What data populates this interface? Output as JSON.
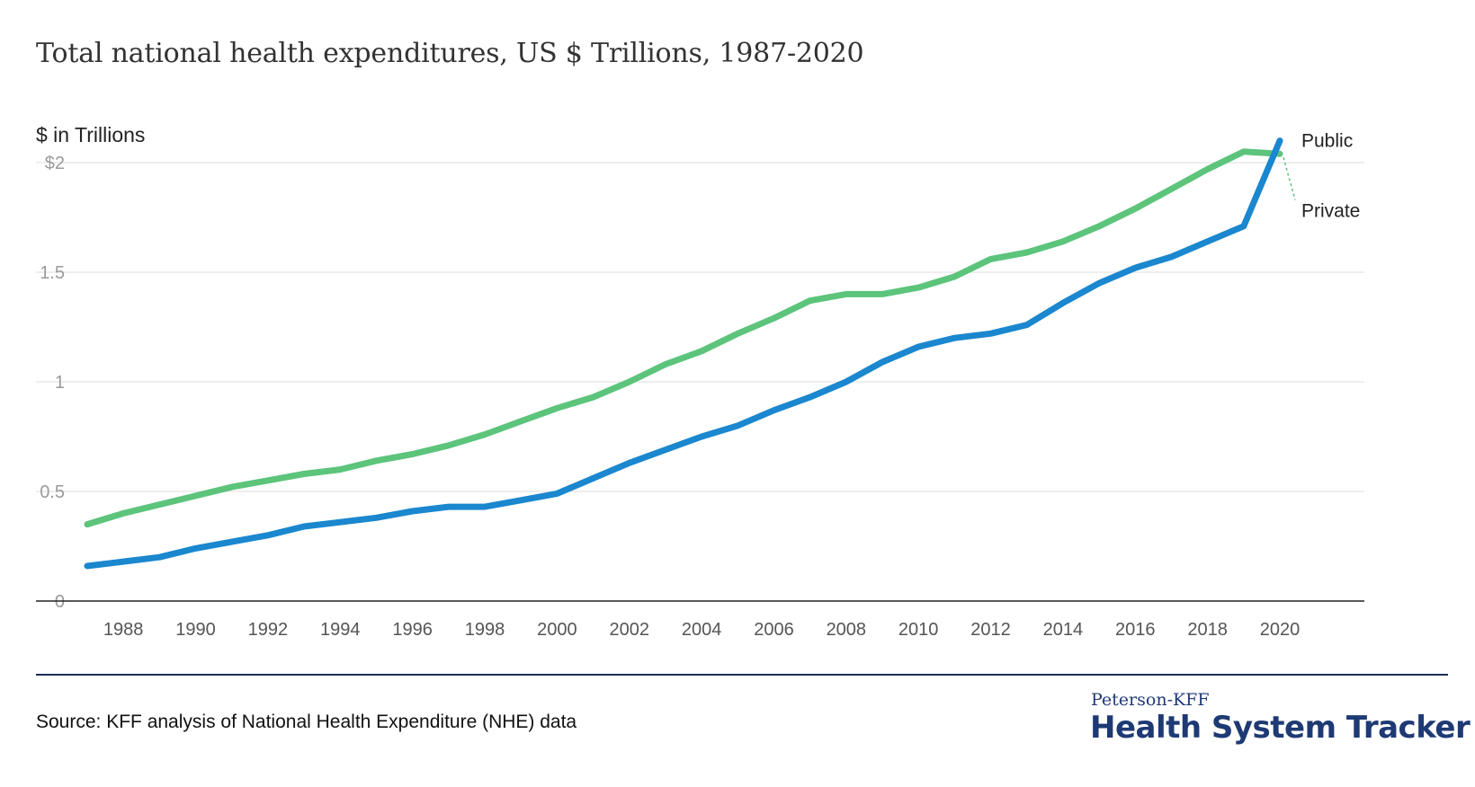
{
  "page": {
    "title": "Total national health expenditures, US $ Trillions, 1987-2020",
    "source": "Source: KFF analysis of National Health Expenditure (NHE) data",
    "brand_top": "Peterson-KFF",
    "brand_main": "Health System Tracker"
  },
  "chart_data": {
    "type": "line",
    "title": "Total national health expenditures, US $ Trillions, 1987-2020",
    "xlabel": "",
    "ylabel": "$ in Trillions",
    "ylim": [
      0,
      2.1
    ],
    "xlim": [
      1987,
      2020
    ],
    "grid": true,
    "x_ticks": [
      "1988",
      "1990",
      "1992",
      "1994",
      "1996",
      "1998",
      "2000",
      "2002",
      "2004",
      "2006",
      "2008",
      "2010",
      "2012",
      "2014",
      "2016",
      "2018",
      "2020"
    ],
    "y_ticks": [
      {
        "value": 0,
        "label": "0"
      },
      {
        "value": 0.5,
        "label": "0.5"
      },
      {
        "value": 1,
        "label": "1"
      },
      {
        "value": 1.5,
        "label": "1.5"
      },
      {
        "value": 2,
        "label": "$2"
      }
    ],
    "x": [
      1987,
      1988,
      1989,
      1990,
      1991,
      1992,
      1993,
      1994,
      1995,
      1996,
      1997,
      1998,
      1999,
      2000,
      2001,
      2002,
      2003,
      2004,
      2005,
      2006,
      2007,
      2008,
      2009,
      2010,
      2011,
      2012,
      2013,
      2014,
      2015,
      2016,
      2017,
      2018,
      2019,
      2020
    ],
    "series": [
      {
        "name": "Public",
        "color": "#1a87cf",
        "values": [
          0.16,
          0.18,
          0.2,
          0.24,
          0.27,
          0.3,
          0.34,
          0.36,
          0.38,
          0.41,
          0.43,
          0.43,
          0.46,
          0.49,
          0.56,
          0.63,
          0.69,
          0.75,
          0.8,
          0.87,
          0.93,
          1.0,
          1.09,
          1.16,
          1.2,
          1.22,
          1.26,
          1.36,
          1.45,
          1.52,
          1.57,
          1.64,
          1.71,
          2.1
        ]
      },
      {
        "name": "Private",
        "color": "#5cc47b",
        "values": [
          0.35,
          0.4,
          0.44,
          0.48,
          0.52,
          0.55,
          0.58,
          0.6,
          0.64,
          0.67,
          0.71,
          0.76,
          0.82,
          0.88,
          0.93,
          1.0,
          1.08,
          1.14,
          1.22,
          1.29,
          1.37,
          1.4,
          1.4,
          1.43,
          1.48,
          1.56,
          1.59,
          1.64,
          1.71,
          1.79,
          1.88,
          1.97,
          2.05,
          2.04
        ]
      }
    ]
  }
}
